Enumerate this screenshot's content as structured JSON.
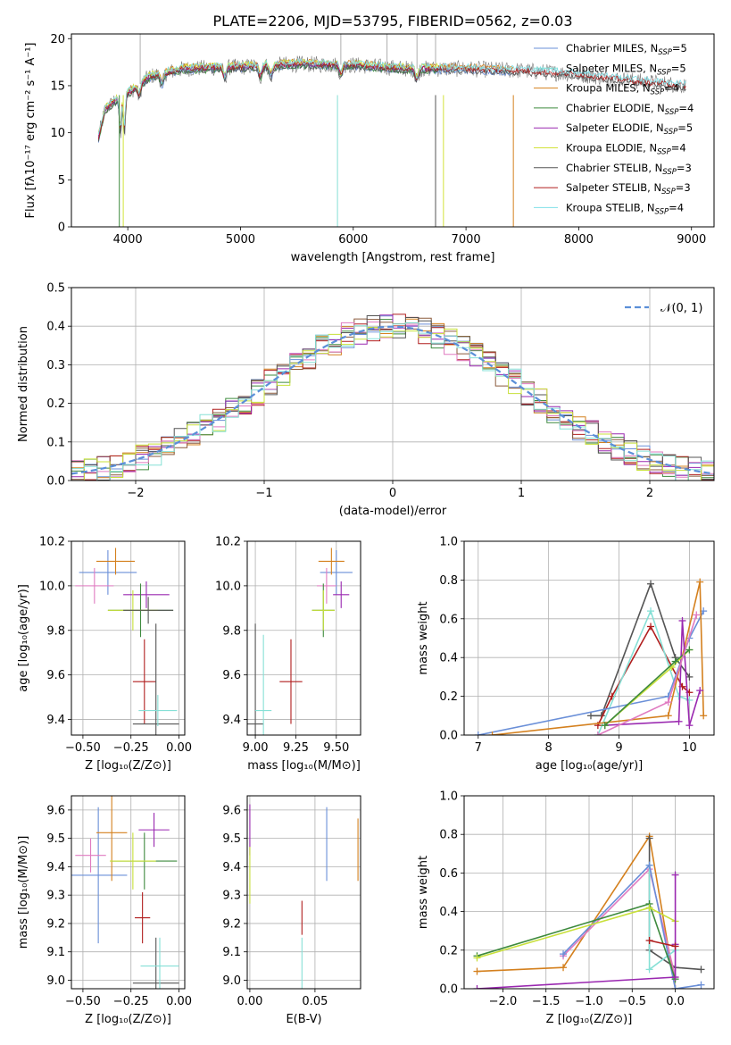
{
  "chart_data": [
    {
      "type": "line",
      "title": "PLATE=2206, MJD=53795, FIBERID=0562, z=0.03",
      "xlabel": "wavelength [Angstrom, rest frame]",
      "ylabel": "Flux [fλ10⁻¹⁷ erg cm⁻² s⁻¹ A⁻¹]",
      "xlim": [
        3500,
        9200
      ],
      "ylim": [
        0,
        20.5
      ],
      "xticks": [
        "4000",
        "5000",
        "6000",
        "7000",
        "8000",
        "9000"
      ],
      "yticks": [
        "0",
        "5",
        "10",
        "15",
        "20"
      ],
      "legend": "top-right",
      "series": [
        {
          "name": "Chabrier MILES, N_SSP=5",
          "color": "#6a8fd8",
          "range": [
            3740,
            7400
          ]
        },
        {
          "name": "Salpeter MILES, N_SSP=5",
          "color": "#86e0d6",
          "range": [
            3740,
            7400
          ]
        },
        {
          "name": "Kroupa MILES, N_SSP=4",
          "color": "#d4801e",
          "range": [
            3740,
            7420
          ]
        },
        {
          "name": "Chabrier ELODIE, N_SSP=4",
          "color": "#3e8a3e",
          "range": [
            3740,
            6800
          ]
        },
        {
          "name": "Salpeter ELODIE, N_SSP=5",
          "color": "#9a28b0",
          "range": [
            3740,
            6800
          ]
        },
        {
          "name": "Kroupa ELODIE, N_SSP=4",
          "color": "#d2e23a",
          "range": [
            3740,
            6800
          ]
        },
        {
          "name": "Chabrier STELIB, N_SSP=3",
          "color": "#555555",
          "range": [
            3740,
            8950
          ]
        },
        {
          "name": "Salpeter STELIB, N_SSP=3",
          "color": "#b01e1e",
          "range": [
            3740,
            8950
          ]
        },
        {
          "name": "Kroupa STELIB, N_SSP=4",
          "color": "#7fe0e8",
          "range": [
            3740,
            8950
          ]
        }
      ],
      "continuum": {
        "x": [
          3740,
          3800,
          3900,
          4000,
          4200,
          4500,
          5000,
          5500,
          6000,
          6500,
          7000,
          7500,
          8000,
          8500,
          8950
        ],
        "y": [
          9.5,
          12.5,
          13.5,
          14.2,
          16.0,
          16.8,
          17.0,
          17.3,
          17.2,
          16.8,
          16.8,
          16.6,
          16.2,
          15.5,
          15.0
        ]
      },
      "absorption_features": [
        3934,
        3969,
        4101,
        4304,
        4861,
        5175,
        5270,
        5890,
        6563
      ]
    },
    {
      "type": "step",
      "xlabel": "(data-model)/error",
      "ylabel": "Normed distribution",
      "xlim": [
        -2.5,
        2.5
      ],
      "ylim": [
        0,
        0.5
      ],
      "xticks": [
        "−2",
        "−1",
        "0",
        "1",
        "2"
      ],
      "yticks": [
        "0.0",
        "0.1",
        "0.2",
        "0.3",
        "0.4",
        "0.5"
      ],
      "legend": "top-right",
      "reference": {
        "name": "𝒩(0, 1)",
        "color": "#5b8fd8",
        "style": "dashed"
      },
      "bin_width": 0.1,
      "series_colors": [
        "#6a8fd8",
        "#d4801e",
        "#3e8a3e",
        "#b01e1e",
        "#9a28b0",
        "#8b5a3c",
        "#e07ac0",
        "#555555",
        "#c8e03a",
        "#86e0d6"
      ],
      "bin_ref_note": "histograms fluctuate around N(0,1) density"
    },
    {
      "type": "errorbar",
      "xlabel": "Z [log₁₀(Z/Z⊙)]",
      "ylabel": "age  [log₁₀(age/yr)]",
      "xlim": [
        -0.56,
        0.03
      ],
      "ylim": [
        9.33,
        10.2
      ],
      "xticks": [
        "−0.50",
        "−0.25",
        "0.00"
      ],
      "yticks": [
        "9.4",
        "9.6",
        "9.8",
        "10.0",
        "10.2"
      ],
      "points": [
        {
          "color": "#6a8fd8",
          "x": -0.37,
          "y": 10.06,
          "xerr": 0.15,
          "yerr": 0.1
        },
        {
          "color": "#d4801e",
          "x": -0.33,
          "y": 10.11,
          "xerr": 0.1,
          "yerr": 0.06
        },
        {
          "color": "#e07ac0",
          "x": -0.44,
          "y": 10.0,
          "xerr": 0.1,
          "yerr": 0.08
        },
        {
          "color": "#9a28b0",
          "x": -0.17,
          "y": 9.96,
          "xerr": 0.12,
          "yerr": 0.06
        },
        {
          "color": "#3e8a3e",
          "x": -0.2,
          "y": 9.89,
          "xerr": 0.17,
          "yerr": 0.12
        },
        {
          "color": "#c8e03a",
          "x": -0.24,
          "y": 9.89,
          "xerr": 0.13,
          "yerr": 0.09
        },
        {
          "color": "#555555",
          "x": -0.16,
          "y": 9.89,
          "xerr": 0.13,
          "yerr": 0.06
        },
        {
          "color": "#b01e1e",
          "x": -0.18,
          "y": 9.57,
          "xerr": 0.06,
          "yerr": 0.19
        },
        {
          "color": "#555555",
          "x": -0.12,
          "y": 9.38,
          "xerr": 0.12,
          "yerr": 0.45
        },
        {
          "color": "#86e0d6",
          "x": -0.11,
          "y": 9.44,
          "xerr": 0.1,
          "yerr": 0.07
        }
      ]
    },
    {
      "type": "errorbar",
      "xlabel": "mass [log₁₀(M/M⊙)]",
      "ylabel": "",
      "xlim": [
        8.95,
        9.65
      ],
      "ylim": [
        9.33,
        10.2
      ],
      "xticks": [
        "9.00",
        "9.25",
        "9.50"
      ],
      "yticks": [
        "9.4",
        "9.6",
        "9.8",
        "10.0",
        "10.2"
      ],
      "points": [
        {
          "color": "#6a8fd8",
          "x": 9.5,
          "y": 10.06,
          "xerr": 0.1,
          "yerr": 0.1
        },
        {
          "color": "#d4801e",
          "x": 9.47,
          "y": 10.11,
          "xerr": 0.08,
          "yerr": 0.06
        },
        {
          "color": "#e07ac0",
          "x": 9.44,
          "y": 10.0,
          "xerr": 0.06,
          "yerr": 0.08
        },
        {
          "color": "#9a28b0",
          "x": 9.53,
          "y": 9.96,
          "xerr": 0.05,
          "yerr": 0.06
        },
        {
          "color": "#3e8a3e",
          "x": 9.42,
          "y": 9.89,
          "xerr": 0.07,
          "yerr": 0.12
        },
        {
          "color": "#c8e03a",
          "x": 9.42,
          "y": 9.89,
          "xerr": 0.07,
          "yerr": 0.09
        },
        {
          "color": "#b01e1e",
          "x": 9.22,
          "y": 9.57,
          "xerr": 0.07,
          "yerr": 0.19
        },
        {
          "color": "#555555",
          "x": 9.0,
          "y": 9.38,
          "xerr": 0.05,
          "yerr": 0.45
        },
        {
          "color": "#86e0d6",
          "x": 9.05,
          "y": 9.44,
          "xerr": 0.05,
          "yerr": 0.34
        }
      ]
    },
    {
      "type": "line",
      "xlabel": "age  [log₁₀(age/yr)]",
      "ylabel": "mass weight",
      "xlim": [
        6.8,
        10.35
      ],
      "ylim": [
        0,
        1.0
      ],
      "xticks": [
        "7",
        "8",
        "9",
        "10"
      ],
      "yticks": [
        "0.0",
        "0.2",
        "0.4",
        "0.6",
        "0.8",
        "1.0"
      ],
      "series": [
        {
          "color": "#555555",
          "x": [
            8.6,
            8.75,
            9.45,
            9.8,
            10.0
          ],
          "y": [
            0.1,
            0.1,
            0.78,
            0.4,
            0.3
          ]
        },
        {
          "color": "#b01e1e",
          "x": [
            8.7,
            8.9,
            9.45,
            9.9,
            10.0
          ],
          "y": [
            0.05,
            0.2,
            0.56,
            0.25,
            0.22
          ]
        },
        {
          "color": "#86e0d6",
          "x": [
            8.7,
            9.45,
            9.85,
            10.0
          ],
          "y": [
            0.0,
            0.64,
            0.2,
            0.18
          ]
        },
        {
          "color": "#6a8fd8",
          "x": [
            7.0,
            9.7,
            10.0,
            10.2
          ],
          "y": [
            0.0,
            0.2,
            0.5,
            0.64
          ]
        },
        {
          "color": "#d4801e",
          "x": [
            7.2,
            9.7,
            10.15,
            10.2
          ],
          "y": [
            0.0,
            0.1,
            0.79,
            0.1
          ]
        },
        {
          "color": "#9a28b0",
          "x": [
            8.8,
            9.85,
            9.9,
            10.0,
            10.15
          ],
          "y": [
            0.05,
            0.07,
            0.59,
            0.05,
            0.23
          ]
        },
        {
          "color": "#c8e03a",
          "x": [
            8.8,
            9.75,
            10.0
          ],
          "y": [
            0.05,
            0.35,
            0.44
          ]
        },
        {
          "color": "#3e8a3e",
          "x": [
            8.8,
            9.8,
            10.0
          ],
          "y": [
            0.05,
            0.38,
            0.44
          ]
        },
        {
          "color": "#e07ac0",
          "x": [
            8.7,
            9.7,
            10.1
          ],
          "y": [
            0.0,
            0.17,
            0.62
          ]
        }
      ]
    },
    {
      "type": "errorbar",
      "xlabel": "Z [log₁₀(Z/Z⊙)]",
      "ylabel": "mass [log₁₀(M/M⊙)]",
      "xlim": [
        -0.56,
        0.03
      ],
      "ylim": [
        8.97,
        9.65
      ],
      "xticks": [
        "−0.50",
        "−0.25",
        "0.00"
      ],
      "yticks": [
        "9.0",
        "9.1",
        "9.2",
        "9.3",
        "9.4",
        "9.5",
        "9.6"
      ],
      "points": [
        {
          "color": "#6a8fd8",
          "x": -0.42,
          "y": 9.37,
          "xerr": 0.15,
          "yerr": 0.24
        },
        {
          "color": "#d4801e",
          "x": -0.35,
          "y": 9.52,
          "xerr": 0.08,
          "yerr": 0.17
        },
        {
          "color": "#e07ac0",
          "x": -0.46,
          "y": 9.44,
          "xerr": 0.08,
          "yerr": 0.06
        },
        {
          "color": "#9a28b0",
          "x": -0.13,
          "y": 9.53,
          "xerr": 0.08,
          "yerr": 0.06
        },
        {
          "color": "#3e8a3e",
          "x": -0.18,
          "y": 9.42,
          "xerr": 0.17,
          "yerr": 0.1
        },
        {
          "color": "#c8e03a",
          "x": -0.24,
          "y": 9.42,
          "xerr": 0.12,
          "yerr": 0.1
        },
        {
          "color": "#b01e1e",
          "x": -0.19,
          "y": 9.22,
          "xerr": 0.04,
          "yerr": 0.09
        },
        {
          "color": "#555555",
          "x": -0.12,
          "y": 8.99,
          "xerr": 0.12,
          "yerr": 0.16
        },
        {
          "color": "#86e0d6",
          "x": -0.1,
          "y": 9.05,
          "xerr": 0.1,
          "yerr": 0.1
        }
      ]
    },
    {
      "type": "errorbar",
      "xlabel": "E(B-V)",
      "ylabel": "",
      "xlim": [
        -0.002,
        0.085
      ],
      "ylim": [
        8.97,
        9.65
      ],
      "xticks": [
        "0.00",
        "0.05"
      ],
      "yticks": [
        "9.0",
        "9.1",
        "9.2",
        "9.3",
        "9.4",
        "9.5",
        "9.6"
      ],
      "points": [
        {
          "color": "#9a28b0",
          "x": 0.0,
          "y": 9.53,
          "xerr": 0.0,
          "yerr": 0.09
        },
        {
          "color": "#c8e03a",
          "x": 0.0,
          "y": 9.37,
          "xerr": 0.0,
          "yerr": 0.1
        },
        {
          "color": "#6a8fd8",
          "x": 0.059,
          "y": 9.48,
          "xerr": 0.0,
          "yerr": 0.13
        },
        {
          "color": "#d4801e",
          "x": 0.083,
          "y": 9.46,
          "xerr": 0.0,
          "yerr": 0.11
        },
        {
          "color": "#b01e1e",
          "x": 0.04,
          "y": 9.22,
          "xerr": 0.0,
          "yerr": 0.06
        },
        {
          "color": "#86e0d6",
          "x": 0.04,
          "y": 9.05,
          "xerr": 0.0,
          "yerr": 0.1
        }
      ]
    },
    {
      "type": "line",
      "xlabel": "Z [log₁₀(Z/Z⊙)]",
      "ylabel": "mass weight",
      "xlim": [
        -2.45,
        0.45
      ],
      "ylim": [
        0,
        1.0
      ],
      "xticks": [
        "−2.0",
        "−1.5",
        "−1.0",
        "−0.5",
        "0.0"
      ],
      "yticks": [
        "0.0",
        "0.2",
        "0.4",
        "0.6",
        "0.8",
        "1.0"
      ],
      "series": [
        {
          "color": "#d4801e",
          "x": [
            -2.3,
            -1.3,
            -0.3,
            0.0
          ],
          "y": [
            0.09,
            0.11,
            0.79,
            0.0
          ]
        },
        {
          "color": "#555555",
          "x": [
            -0.3,
            -0.3,
            0.0,
            0.3
          ],
          "y": [
            0.78,
            0.2,
            0.11,
            0.1
          ]
        },
        {
          "color": "#e07ac0",
          "x": [
            -1.3,
            -0.3,
            0.0
          ],
          "y": [
            0.17,
            0.62,
            0.06
          ]
        },
        {
          "color": "#86e0d6",
          "x": [
            -0.3,
            -0.3,
            0.0
          ],
          "y": [
            0.64,
            0.1,
            0.2
          ]
        },
        {
          "color": "#6a8fd8",
          "x": [
            -1.3,
            -0.3,
            0.0,
            0.3
          ],
          "y": [
            0.18,
            0.64,
            0.0,
            0.02
          ]
        },
        {
          "color": "#3e8a3e",
          "x": [
            -2.3,
            -0.3,
            0.0
          ],
          "y": [
            0.17,
            0.44,
            0.05
          ]
        },
        {
          "color": "#c8e03a",
          "x": [
            -2.3,
            -0.3,
            0.0
          ],
          "y": [
            0.16,
            0.42,
            0.35
          ]
        },
        {
          "color": "#9a28b0",
          "x": [
            -2.3,
            0.0,
            0.0,
            0.0
          ],
          "y": [
            0.0,
            0.06,
            0.59,
            0.23
          ]
        },
        {
          "color": "#b01e1e",
          "x": [
            -0.3,
            0.0
          ],
          "y": [
            0.25,
            0.22
          ]
        }
      ]
    }
  ]
}
